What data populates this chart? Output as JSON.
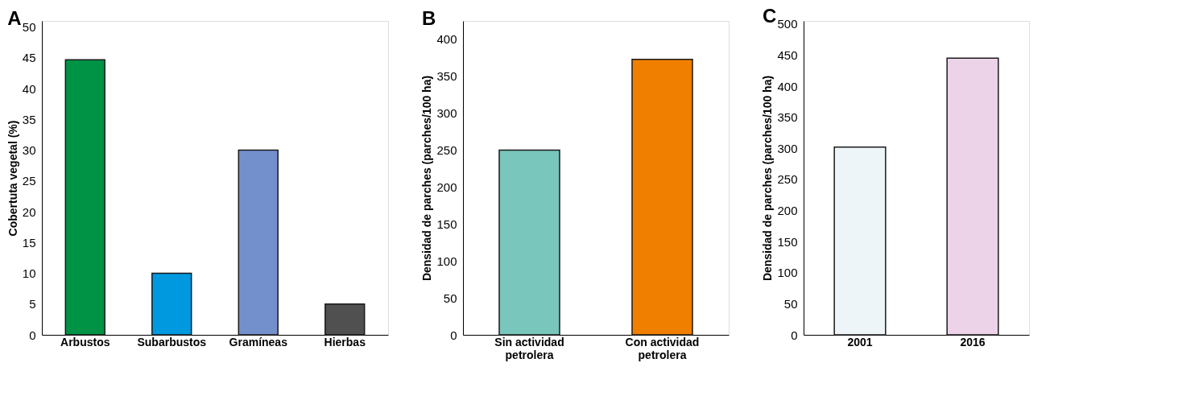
{
  "chart_data": [
    {
      "type": "bar",
      "title": "A",
      "ylabel": "Cobertuta vegetal (%)",
      "categories": [
        "Arbustos",
        "Subarbustos",
        "Gramíneas",
        "Hierbas"
      ],
      "values": [
        44.7,
        10,
        30,
        5
      ],
      "colors": [
        "#009245",
        "#0099e0",
        "#7490cc",
        "#505050"
      ],
      "ylim": [
        0,
        51
      ],
      "yticks": [
        0,
        5,
        10,
        15,
        20,
        25,
        30,
        35,
        40,
        45,
        50
      ],
      "grid": false
    },
    {
      "type": "bar",
      "title": "B",
      "ylabel": "Densidad de parches (parches/100 ha)",
      "categories": [
        "Sin actividad petrolera",
        "Con actividad petrolera"
      ],
      "values": [
        250,
        373
      ],
      "colors": [
        "#78c6bc",
        "#f07f00"
      ],
      "ylim": [
        0,
        425
      ],
      "yticks": [
        0,
        50,
        100,
        150,
        200,
        250,
        300,
        350,
        400
      ],
      "grid": false
    },
    {
      "type": "bar",
      "title": "C",
      "ylabel": "Densidad de parches (parches/100 ha)",
      "categories": [
        "2001",
        "2016"
      ],
      "values": [
        302,
        445
      ],
      "colors": [
        "#eef5f8",
        "#ecd3e8"
      ],
      "ylim": [
        0,
        505
      ],
      "yticks": [
        0,
        50,
        100,
        150,
        200,
        250,
        300,
        350,
        400,
        450,
        500
      ],
      "grid": false
    }
  ]
}
